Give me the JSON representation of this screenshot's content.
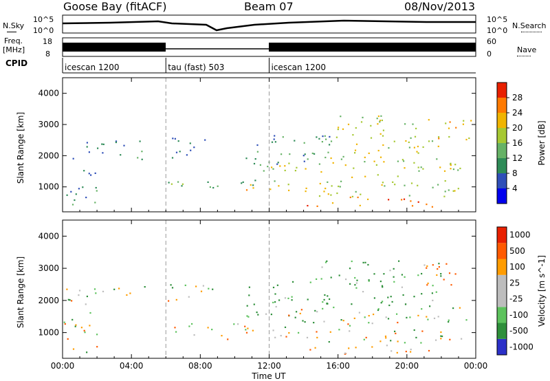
{
  "header": {
    "station": "Goose Bay (fitACF)",
    "beam": "Beam 07",
    "date": "08/Nov/2013"
  },
  "labels": {
    "nsky": "N.Sky",
    "nsearch": "N.Search",
    "freq_line1": "Freq.",
    "freq_line2": "[MHz]",
    "nave": "Nave",
    "cpid": "CPID",
    "nsky_ticks": [
      "10^5",
      "10^0"
    ],
    "nsearch_ticks": [
      "10^5",
      "10^0"
    ],
    "freq_ticks": [
      "18",
      "8"
    ],
    "nave_ticks": [
      "60",
      "0"
    ]
  },
  "cpid_segments": [
    {
      "label": "icescan 1200",
      "start": 0.0,
      "end": 6.0
    },
    {
      "label": "tau (fast) 503",
      "start": 6.0,
      "end": 12.0
    },
    {
      "label": "icescan 1200",
      "start": 12.0,
      "end": 24.0
    }
  ],
  "chart_data": [
    {
      "type": "heatmap",
      "title": "",
      "xlabel": "",
      "ylabel": "Slant Range [km]",
      "xlim": [
        0,
        24
      ],
      "ylim": [
        200,
        4500
      ],
      "xticks": [
        "00:00",
        "04:00",
        "08:00",
        "12:00",
        "16:00",
        "20:00",
        "00:00"
      ],
      "yticks": [
        1000,
        2000,
        3000,
        4000
      ],
      "colorbar": {
        "label": "Power [dB]",
        "ticks": [
          4,
          8,
          12,
          16,
          20,
          24,
          28
        ],
        "range": [
          0,
          32
        ],
        "colors": [
          "#0000ee",
          "#2f4fb8",
          "#2e8b57",
          "#66b266",
          "#a6c832",
          "#f0b400",
          "#ff7a00",
          "#e82000"
        ]
      },
      "echo_regions": [
        {
          "t0": 0.2,
          "t1": 4.8,
          "r0": 1900,
          "r1": 2500,
          "value": 9
        },
        {
          "t0": 6.0,
          "t1": 8.8,
          "r0": 1950,
          "r1": 2600,
          "value": 7
        },
        {
          "t0": 0.0,
          "t1": 2.0,
          "r0": 400,
          "r1": 1700,
          "value": 10
        },
        {
          "t0": 6.0,
          "t1": 11.5,
          "r0": 900,
          "r1": 1300,
          "value": 13
        },
        {
          "t0": 9.5,
          "t1": 11.2,
          "r0": 800,
          "r1": 1100,
          "value": 21
        },
        {
          "t0": 10.5,
          "t1": 15.5,
          "r0": 1500,
          "r1": 2700,
          "value": 11
        },
        {
          "t0": 12.0,
          "t1": 23.5,
          "r0": 700,
          "r1": 1800,
          "value": 18
        },
        {
          "t0": 14.0,
          "t1": 21.5,
          "r0": 350,
          "r1": 700,
          "value": 26
        },
        {
          "t0": 15.0,
          "t1": 22.0,
          "r0": 1800,
          "r1": 3300,
          "value": 19
        },
        {
          "t0": 21.0,
          "t1": 23.8,
          "r0": 2500,
          "r1": 3200,
          "value": 22
        }
      ]
    },
    {
      "type": "heatmap",
      "title": "",
      "xlabel": "Time UT",
      "ylabel": "Slant Range [km]",
      "xlim": [
        0,
        24
      ],
      "ylim": [
        200,
        4500
      ],
      "xticks": [
        "00:00",
        "04:00",
        "08:00",
        "12:00",
        "16:00",
        "20:00",
        "00:00"
      ],
      "yticks": [
        1000,
        2000,
        3000,
        4000
      ],
      "colorbar": {
        "label": "Velocity [m s^-1]",
        "ticks": [
          "1000",
          "500",
          "100",
          "25",
          "-25",
          "-100",
          "-500",
          "-1000"
        ],
        "colors": [
          "#2b30c8",
          "#2e8f3a",
          "#5cc25c",
          "#bdbdbd",
          "#bdbdbd",
          "#ff9c00",
          "#ff5a00",
          "#e82000"
        ]
      },
      "echo_regions": [
        {
          "t0": 0.2,
          "t1": 4.8,
          "r0": 1900,
          "r1": 2500,
          "value": 0
        },
        {
          "t0": 6.0,
          "t1": 8.8,
          "r0": 1950,
          "r1": 2600,
          "value": 0
        },
        {
          "t0": 0.0,
          "t1": 2.0,
          "r0": 400,
          "r1": 1700,
          "value": 0
        },
        {
          "t0": 6.0,
          "t1": 11.5,
          "r0": 900,
          "r1": 1300,
          "value": 0
        },
        {
          "t0": 9.5,
          "t1": 11.2,
          "r0": 800,
          "r1": 1100,
          "value": -200
        },
        {
          "t0": 10.5,
          "t1": 15.5,
          "r0": 1500,
          "r1": 2700,
          "value": 150
        },
        {
          "t0": 12.0,
          "t1": 23.5,
          "r0": 700,
          "r1": 1800,
          "value": 0
        },
        {
          "t0": 14.0,
          "t1": 21.5,
          "r0": 350,
          "r1": 700,
          "value": -150
        },
        {
          "t0": 15.0,
          "t1": 22.0,
          "r0": 1800,
          "r1": 3300,
          "value": 120
        },
        {
          "t0": 21.0,
          "t1": 23.8,
          "r0": 2500,
          "r1": 3200,
          "value": -200
        }
      ]
    }
  ]
}
